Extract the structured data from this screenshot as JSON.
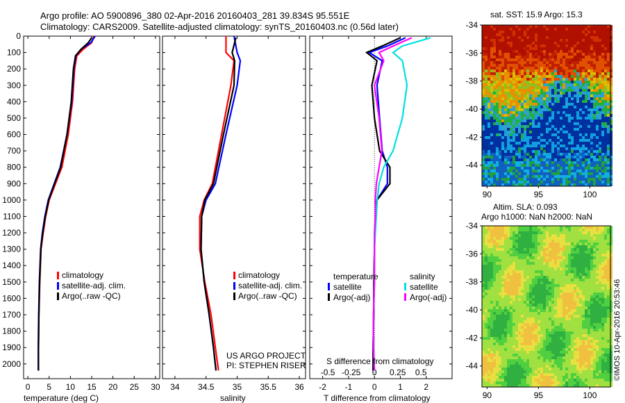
{
  "header": {
    "line1": "Argo profile: AO 5900896_380 02-Apr-2016 20160403_281 39.834S 95.551E",
    "line2": "Climatology: CARS2009. Satellite-adjusted climatology: synTS_20160403.nc (0.56d later)"
  },
  "colors": {
    "climatology": "#ff0000",
    "satellite": "#0000ff",
    "argo": "#000000",
    "satellite_salinity": "#00e0e0",
    "argo_salinity": "#ff00ff"
  },
  "credit": "©IMOS 10-Apr-2016 20:53:46",
  "chart_data": [
    {
      "id": "temperature",
      "type": "line",
      "xlabel": "temperature (deg C)",
      "ylabel": "",
      "xlim": [
        -1,
        31
      ],
      "ylim": [
        2090,
        0
      ],
      "xticks": [
        "0",
        "5",
        "10",
        "15",
        "20",
        "25",
        "30"
      ],
      "xtick_values": [
        0,
        5,
        10,
        15,
        20,
        25,
        30
      ],
      "yticks": [
        "0",
        "100",
        "200",
        "300",
        "400",
        "500",
        "600",
        "700",
        "800",
        "900",
        "1000",
        "1100",
        "1200",
        "1300",
        "1400",
        "1500",
        "1600",
        "1700",
        "1800",
        "1900",
        "2000"
      ],
      "ytick_values": [
        0,
        100,
        200,
        300,
        400,
        500,
        600,
        700,
        800,
        900,
        1000,
        1100,
        1200,
        1300,
        1400,
        1500,
        1600,
        1700,
        1800,
        1900,
        2000
      ],
      "legend": [
        "climatology",
        "satellite-adj. clim.",
        "Argo(..raw -QC)"
      ],
      "legend_position": "lower-center",
      "series": [
        {
          "name": "climatology",
          "color": "#ff0000",
          "x": [
            15.5,
            15,
            13,
            11.5,
            11,
            10.5,
            9.5,
            8,
            6.5,
            5,
            4.2,
            3.6,
            3.1,
            2.8,
            2.6,
            2.5,
            2.5
          ],
          "y": [
            0,
            40,
            80,
            120,
            200,
            400,
            600,
            800,
            900,
            1000,
            1100,
            1200,
            1300,
            1500,
            1700,
            1900,
            2040
          ]
        },
        {
          "name": "satellite-adj. clim.",
          "color": "#0000ff",
          "x": [
            15.8,
            14.8,
            12.5,
            11.3,
            10.8,
            10.3,
            9.2,
            7.6,
            6.2,
            4.8,
            4.0,
            3.4,
            3.0,
            2.7,
            2.55,
            2.45,
            2.45
          ],
          "y": [
            0,
            40,
            80,
            120,
            200,
            400,
            600,
            800,
            900,
            1000,
            1100,
            1200,
            1300,
            1500,
            1700,
            1900,
            2040
          ]
        },
        {
          "name": "Argo(..raw -QC)",
          "color": "#000000",
          "x": [
            15,
            14.2,
            12.5,
            11.2,
            10.7,
            10.2,
            9.2,
            7.7,
            6.3,
            4.9,
            4.1,
            3.5,
            3.05,
            2.75,
            2.6,
            2.5,
            2.5
          ],
          "y": [
            10,
            40,
            80,
            120,
            200,
            400,
            600,
            800,
            900,
            1000,
            1100,
            1200,
            1300,
            1500,
            1700,
            1900,
            2040
          ]
        }
      ]
    },
    {
      "id": "salinity",
      "type": "line",
      "xlabel": "salinity",
      "ylabel": "",
      "xlim": [
        33.8,
        36.1
      ],
      "ylim": [
        2090,
        0
      ],
      "xticks": [
        "34",
        "34.5",
        "35",
        "35.5",
        "36"
      ],
      "xtick_values": [
        34,
        34.5,
        35,
        35.5,
        36
      ],
      "legend": [
        "climatology",
        "satellite-adj. clim.",
        "Argo(..raw -QC)"
      ],
      "legend_position": "lower-right",
      "annotations": [
        "US ARGO PROJECT",
        "PI: STEPHEN RISER"
      ],
      "series": [
        {
          "name": "climatology",
          "color": "#ff0000",
          "x": [
            34.82,
            34.82,
            34.95,
            34.9,
            34.75,
            34.6,
            34.47,
            34.4,
            34.4,
            34.48,
            34.58,
            34.65,
            34.7
          ],
          "y": [
            0,
            100,
            150,
            300,
            600,
            900,
            1000,
            1100,
            1300,
            1500,
            1700,
            1900,
            2040
          ]
        },
        {
          "name": "satellite-adj. clim.",
          "color": "#0000ff",
          "x": [
            34.95,
            35.0,
            35.05,
            35.0,
            34.82,
            34.65,
            34.5,
            34.43,
            34.42,
            34.47,
            34.55,
            34.62,
            34.66
          ],
          "y": [
            0,
            100,
            150,
            300,
            600,
            900,
            1000,
            1100,
            1300,
            1500,
            1700,
            1900,
            2040
          ]
        },
        {
          "name": "Argo(..raw -QC)",
          "color": "#000000",
          "x": [
            34.98,
            34.92,
            34.96,
            34.95,
            34.78,
            34.62,
            34.48,
            34.43,
            34.42,
            34.47,
            34.55,
            34.62,
            34.66
          ],
          "y": [
            10,
            100,
            150,
            300,
            600,
            900,
            1000,
            1100,
            1300,
            1500,
            1700,
            1900,
            2040
          ]
        }
      ]
    },
    {
      "id": "difference",
      "type": "line",
      "xlabel": "T difference from climatology",
      "xlabel_top": "S difference from climatology",
      "xlim": [
        -2.5,
        3
      ],
      "ylim": [
        2090,
        0
      ],
      "xticks": [
        "-2",
        "-1",
        "0",
        "1",
        "2"
      ],
      "xtick_values": [
        -2,
        -1,
        0,
        1,
        2
      ],
      "xticks_s": [
        "-0.5",
        "-0.25",
        "0",
        "0.25",
        "0.5"
      ],
      "xticks_s_values": [
        -0.5,
        -0.25,
        0,
        0.25,
        0.5
      ],
      "legend_groups": [
        {
          "title": "temperature",
          "items": [
            "satellite",
            "Argo(-adj)"
          ]
        },
        {
          "title": "salinity",
          "items": [
            "satellite",
            "Argo(-adj)"
          ]
        }
      ],
      "legend_position": "lower-center",
      "series": [
        {
          "name": "temperature satellite",
          "color": "#0000ff",
          "x": [
            1.2,
            0.5,
            -0.2,
            0.3,
            0.1,
            0.2,
            0.3,
            0.5,
            0.5,
            0.1,
            0.05,
            0.02,
            0.0,
            -0.02,
            -0.03,
            -0.05,
            -0.05
          ],
          "y": [
            10,
            60,
            100,
            150,
            300,
            500,
            700,
            800,
            900,
            1000,
            1100,
            1200,
            1300,
            1500,
            1700,
            1900,
            2040
          ]
        },
        {
          "name": "temperature Argo(-adj)",
          "color": "#000000",
          "x": [
            1.0,
            0.3,
            -0.3,
            0.1,
            -0.1,
            0.0,
            0.2,
            0.6,
            0.6,
            0.1,
            0.05,
            0.02,
            0.0,
            -0.02,
            -0.03,
            -0.05,
            -0.05
          ],
          "y": [
            10,
            60,
            100,
            150,
            300,
            500,
            700,
            800,
            900,
            1000,
            1100,
            1200,
            1300,
            1500,
            1700,
            1900,
            2040
          ]
        },
        {
          "name": "salinity satellite",
          "color": "#00e0e0",
          "x": [
            0.6,
            0.3,
            0.2,
            0.3,
            0.35,
            0.3,
            0.2,
            0.1,
            0.05,
            0.03,
            0.02,
            0.01,
            0.0,
            0.0,
            -0.01,
            -0.01,
            0.0
          ],
          "y": [
            10,
            60,
            100,
            150,
            300,
            500,
            700,
            800,
            900,
            1000,
            1100,
            1200,
            1300,
            1500,
            1700,
            1900,
            2040
          ]
        },
        {
          "name": "salinity Argo(-adj)",
          "color": "#ff00ff",
          "x": [
            0.4,
            0.2,
            0.05,
            0.1,
            0.0,
            0.05,
            0.08,
            0.05,
            0.02,
            0.01,
            0.01,
            0.0,
            0.0,
            0.0,
            -0.01,
            -0.01,
            0.0
          ],
          "y": [
            10,
            60,
            100,
            150,
            300,
            500,
            700,
            800,
            900,
            1000,
            1100,
            1200,
            1300,
            1500,
            1700,
            1900,
            2040
          ]
        }
      ]
    },
    {
      "id": "sst-map",
      "type": "heatmap",
      "title": "sat. SST: 15.9  Argo: 15.3",
      "xlim": [
        89.5,
        102
      ],
      "ylim": [
        -45.5,
        -34
      ],
      "xticks": [
        "90",
        "95",
        "100"
      ],
      "xtick_values": [
        90,
        95,
        100
      ],
      "yticks": [
        "-34",
        "-36",
        "-38",
        "-40",
        "-42",
        "-44"
      ],
      "ytick_values": [
        -34,
        -36,
        -38,
        -40,
        -42,
        -44
      ],
      "description_colors": [
        "dark red north",
        "orange",
        "yellow-green front near -40",
        "blue south"
      ]
    },
    {
      "id": "sla-map",
      "type": "heatmap",
      "title": "Altim. SLA: 0.093",
      "subtitle": "Argo h1000: NaN  h2000: NaN",
      "xlim": [
        89.5,
        102
      ],
      "ylim": [
        -45.5,
        -34
      ],
      "xticks": [
        "90",
        "95",
        "100"
      ],
      "xtick_values": [
        90,
        95,
        100
      ],
      "yticks": [
        "-34",
        "-36",
        "-38",
        "-40",
        "-42",
        "-44"
      ],
      "ytick_values": [
        -34,
        -36,
        -38,
        -40,
        -42,
        -44
      ]
    }
  ]
}
